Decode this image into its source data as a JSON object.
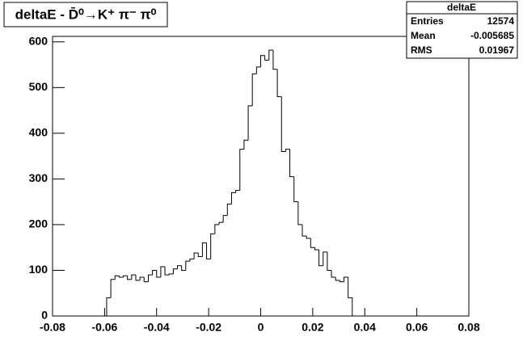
{
  "chart_data": {
    "type": "histogram",
    "title": "deltaE - D̄⁰→K⁺ π⁻ π⁰",
    "stats": {
      "name": "deltaE",
      "rows": [
        {
          "label": "Entries",
          "value": 12574
        },
        {
          "label": "Mean",
          "value": -0.005685
        },
        {
          "label": "RMS",
          "value": 0.01967
        }
      ]
    },
    "bins": [
      -0.0592,
      -0.0576,
      -0.056,
      -0.0544,
      -0.0528,
      -0.0512,
      -0.0496,
      -0.048,
      -0.0464,
      -0.0448,
      -0.0432,
      -0.0416,
      -0.04,
      -0.0384,
      -0.0368,
      -0.0352,
      -0.0336,
      -0.032,
      -0.0304,
      -0.0288,
      -0.0272,
      -0.0256,
      -0.024,
      -0.0224,
      -0.0208,
      -0.0192,
      -0.0176,
      -0.016,
      -0.0144,
      -0.0128,
      -0.0112,
      -0.0096,
      -0.008,
      -0.0064,
      -0.0048,
      -0.0032,
      -0.0016,
      0,
      0.0016,
      0.0032,
      0.0048,
      0.0064,
      0.008,
      0.0096,
      0.0112,
      0.0128,
      0.0144,
      0.016,
      0.0176,
      0.0192,
      0.0208,
      0.0224,
      0.024,
      0.0256,
      0.0272,
      0.0288,
      0.0304,
      0.032,
      0.0336,
      0.0352
    ],
    "values": [
      40,
      80,
      88,
      85,
      88,
      80,
      90,
      78,
      85,
      75,
      90,
      100,
      85,
      108,
      90,
      92,
      103,
      110,
      100,
      120,
      125,
      138,
      130,
      160,
      125,
      180,
      200,
      205,
      220,
      245,
      270,
      275,
      365,
      385,
      460,
      530,
      545,
      570,
      560,
      582,
      540,
      480,
      360,
      365,
      305,
      250,
      200,
      175,
      170,
      150,
      145,
      110,
      140,
      100,
      85,
      78,
      75,
      85,
      40
    ],
    "color": "#000000",
    "xlim": [
      -0.08,
      0.08
    ],
    "xticks": [
      -0.08,
      -0.06,
      -0.04,
      -0.02,
      0,
      0.02,
      0.04,
      0.06,
      0.08
    ],
    "ylim": [
      0,
      612
    ],
    "yticks": [
      0,
      100,
      200,
      300,
      400,
      500,
      600
    ]
  }
}
